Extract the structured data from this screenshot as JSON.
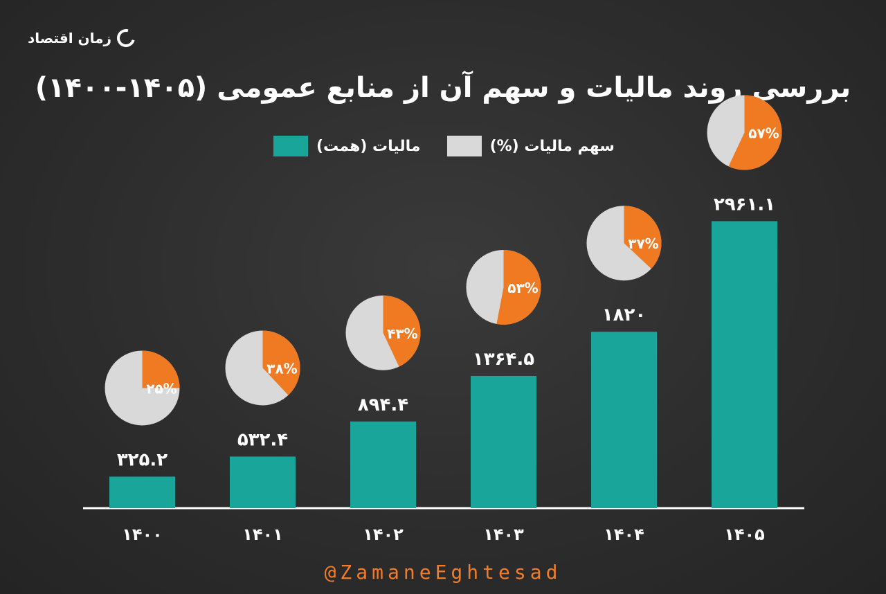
{
  "brand": {
    "name": "زمان اقتصاد"
  },
  "title": "بررسی روند مالیات و سهم آن از منابع عمومی (۱۴۰۵-۱۴۰۰)",
  "legend": {
    "tax_label": "مالیات (همت)",
    "share_label": "سهم مالیات (%)"
  },
  "footer": "@ZamaneEghtesad",
  "colors": {
    "bar": "#1aa59a",
    "share": "#ef7a22",
    "pie_rest": "#d9d9d9",
    "background": "#2e2e2e"
  },
  "chart_data": {
    "type": "bar",
    "title": "بررسی روند مالیات و سهم آن از منابع عمومی (۱۴۰۵-۱۴۰۰)",
    "categories": [
      "۱۴۰۰",
      "۱۴۰۱",
      "۱۴۰۲",
      "۱۴۰۳",
      "۱۴۰۴",
      "۱۴۰۵"
    ],
    "series": [
      {
        "name": "مالیات (همت)",
        "values": [
          325.2,
          532.4,
          894.4,
          1364.5,
          1820,
          2961.1
        ],
        "labels": [
          "۳۲۵.۲",
          "۵۳۲.۴",
          "۸۹۴.۴",
          "۱۳۶۴.۵",
          "۱۸۲۰",
          "۲۹۶۱.۱"
        ]
      },
      {
        "name": "سهم مالیات (%)",
        "values": [
          25,
          38,
          43,
          53,
          37,
          57
        ],
        "labels": [
          "۲۵%",
          "۳۸%",
          "۴۳%",
          "۵۳%",
          "۳۷%",
          "۵۷%"
        ]
      }
    ],
    "ylim": [
      0,
      3100
    ],
    "grid": false,
    "legend_position": "top-center"
  }
}
